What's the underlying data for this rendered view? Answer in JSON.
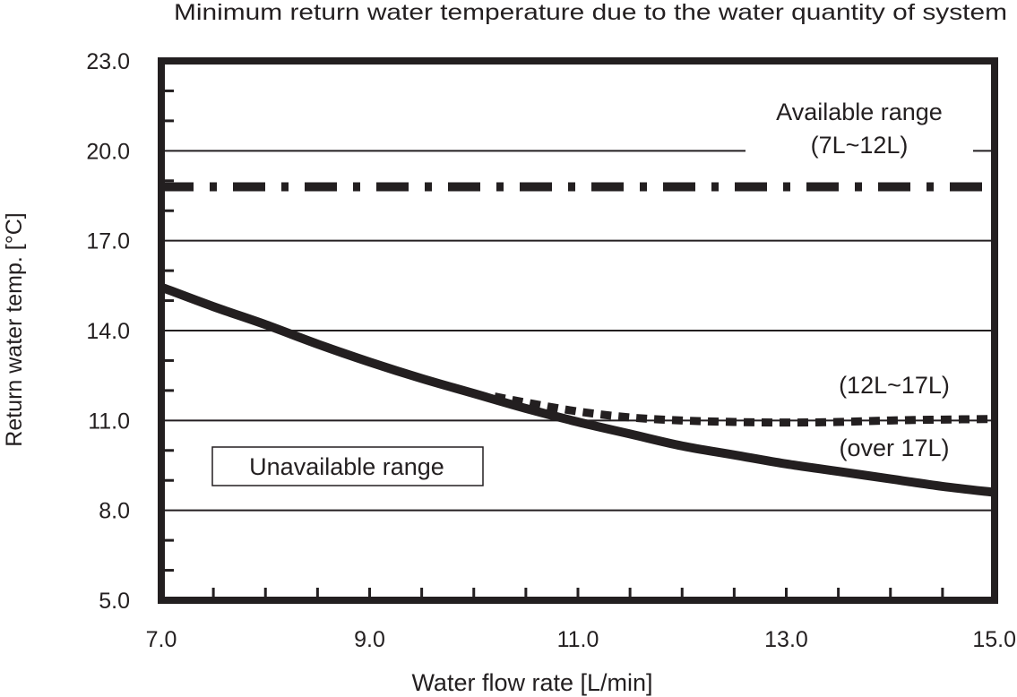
{
  "chart_data": {
    "type": "line",
    "title": "Minimum return water temperature due to the water quantity of system",
    "xlabel": "Water flow rate [L/min]",
    "ylabel": "Return water temp. [°C]",
    "xlim": [
      7.0,
      15.0
    ],
    "ylim": [
      5.0,
      23.0
    ],
    "x_ticks": [
      "7.0",
      "9.0",
      "11.0",
      "13.0",
      "15.0"
    ],
    "x_tick_values": [
      7,
      9,
      11,
      13,
      15
    ],
    "x_minor_step": 0.5,
    "y_ticks": [
      "23.0",
      "20.0",
      "17.0",
      "14.0",
      "11.0",
      "8.0",
      "5.0"
    ],
    "y_tick_values": [
      23,
      20,
      17,
      14,
      11,
      8,
      5
    ],
    "y_minor_step": 1.0,
    "grid": true,
    "grid_y_values": [
      20,
      17,
      14,
      11,
      8
    ],
    "series": [
      {
        "name": "Available range (7L~12L)",
        "style": "dash-dot",
        "x": [
          7.0,
          15.0
        ],
        "y": [
          18.8,
          18.8
        ]
      },
      {
        "name": "(12L~17L)",
        "style": "dotted",
        "x": [
          10.2,
          10.5,
          11.0,
          11.5,
          12.0,
          12.5,
          13.0,
          13.5,
          14.0,
          14.5,
          15.0
        ],
        "y": [
          11.8,
          11.6,
          11.3,
          11.1,
          11.0,
          10.95,
          10.93,
          10.95,
          11.0,
          11.03,
          11.05
        ]
      },
      {
        "name": "(over 17L)",
        "style": "solid",
        "x": [
          7.0,
          7.5,
          8.0,
          8.5,
          9.0,
          9.5,
          10.0,
          10.5,
          11.0,
          11.5,
          12.0,
          12.5,
          13.0,
          13.5,
          14.0,
          14.5,
          15.0
        ],
        "y": [
          15.45,
          14.8,
          14.2,
          13.55,
          12.95,
          12.4,
          11.9,
          11.4,
          10.95,
          10.55,
          10.15,
          9.85,
          9.55,
          9.3,
          9.05,
          8.8,
          8.6
        ]
      }
    ],
    "annotations": {
      "available_line1": "Available range",
      "available_line2": "(7L~12L)",
      "mid_label": "(12L~17L)",
      "low_label": "(over 17L)",
      "unavailable_label": "Unavailable range"
    },
    "colors": {
      "ink": "#231f20",
      "background": "#ffffff"
    }
  }
}
